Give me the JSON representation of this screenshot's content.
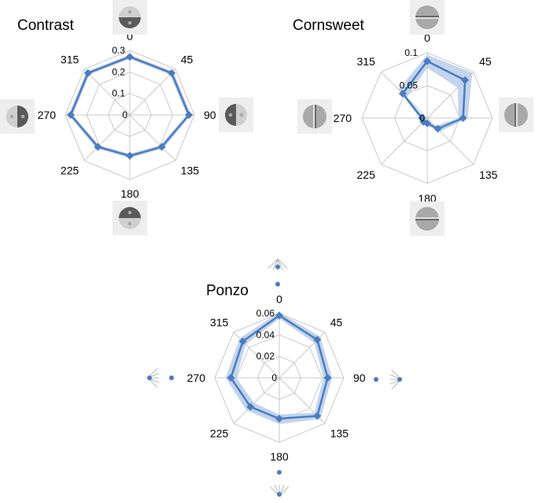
{
  "chart_data": [
    {
      "type": "radar",
      "title": "Contrast",
      "axes": [
        "0",
        "45",
        "90",
        "135",
        "180",
        "225",
        "270",
        "315"
      ],
      "ticks": [
        "0",
        "0.1",
        "0.2",
        "0.3"
      ],
      "rlim": [
        0,
        0.3
      ],
      "series": [
        {
          "values": [
            0.27,
            0.275,
            0.275,
            0.21,
            0.19,
            0.21,
            0.275,
            0.275
          ],
          "band_lower": [
            0.26,
            0.265,
            0.265,
            0.2,
            0.18,
            0.2,
            0.265,
            0.265
          ],
          "band_upper": [
            0.28,
            0.285,
            0.285,
            0.22,
            0.2,
            0.22,
            0.285,
            0.285
          ]
        }
      ],
      "color": "#4a7cc1",
      "band_color": "#b9cde9",
      "grid": true
    },
    {
      "type": "radar",
      "title": "Cornsweet",
      "axes": [
        "0",
        "45",
        "90",
        "135",
        "180",
        "225",
        "270",
        "315"
      ],
      "ticks": [
        "0",
        "0.05",
        "0.1"
      ],
      "rlim": [
        0,
        0.1
      ],
      "series": [
        {
          "values": [
            0.087,
            0.082,
            0.055,
            0.023,
            0.008,
            0.008,
            0.008,
            0.053
          ],
          "band_lower": [
            0.077,
            0.066,
            0.048,
            0.017,
            0.004,
            0.004,
            0.004,
            0.044
          ],
          "band_upper": [
            0.097,
            0.098,
            0.062,
            0.029,
            0.012,
            0.012,
            0.012,
            0.062
          ]
        }
      ],
      "color": "#4a7cc1",
      "band_color": "#b9cde9",
      "grid": true
    },
    {
      "type": "radar",
      "title": "Ponzo",
      "axes": [
        "0",
        "45",
        "90",
        "135",
        "180",
        "225",
        "270",
        "315"
      ],
      "ticks": [
        "0",
        "0.02",
        "0.04",
        "0.06"
      ],
      "rlim": [
        0,
        0.06
      ],
      "series": [
        {
          "values": [
            0.058,
            0.05,
            0.045,
            0.05,
            0.038,
            0.038,
            0.045,
            0.048
          ],
          "band_lower": [
            0.055,
            0.046,
            0.041,
            0.046,
            0.034,
            0.033,
            0.04,
            0.044
          ],
          "band_upper": [
            0.061,
            0.054,
            0.049,
            0.054,
            0.043,
            0.043,
            0.05,
            0.052
          ]
        }
      ],
      "color": "#4a7cc1",
      "band_color": "#b9cde9",
      "grid": true
    }
  ],
  "stimulus_icons": {
    "contrast": "contrast-disc-icon",
    "cornsweet": "cornsweet-disc-icon",
    "ponzo": "ponzo-lines-icon"
  }
}
